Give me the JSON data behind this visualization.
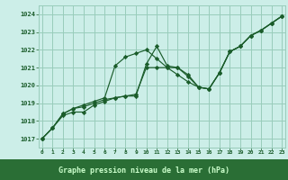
{
  "background_color": "#cceee8",
  "grid_color": "#99ccbb",
  "line_color": "#1a5c2a",
  "marker_color": "#1a5c2a",
  "xlabel": "Graphe pression niveau de la mer (hPa)",
  "xlabel_color": "#1a5c2a",
  "xlabel_bg": "#2d7a3a",
  "xlim": [
    -0.3,
    23.3
  ],
  "ylim": [
    1016.5,
    1024.5
  ],
  "yticks": [
    1017,
    1018,
    1019,
    1020,
    1021,
    1022,
    1023,
    1024
  ],
  "xticks": [
    0,
    1,
    2,
    3,
    4,
    5,
    6,
    7,
    8,
    9,
    10,
    11,
    12,
    13,
    14,
    15,
    16,
    17,
    18,
    19,
    20,
    21,
    22,
    23
  ],
  "series": [
    [
      1017.0,
      1017.6,
      1018.4,
      1018.7,
      1018.8,
      1019.0,
      1019.2,
      1019.3,
      1019.4,
      1019.4,
      1021.2,
      1022.2,
      1021.1,
      1021.0,
      1020.6,
      1019.9,
      1019.8,
      1020.7,
      1021.9,
      1022.2,
      1022.8,
      1023.1,
      1023.5,
      1023.9
    ],
    [
      1017.0,
      1017.6,
      1018.4,
      1018.7,
      1018.9,
      1019.1,
      1019.3,
      1021.1,
      1021.6,
      1021.8,
      1022.0,
      1021.5,
      1021.0,
      1020.6,
      1020.2,
      1019.9,
      1019.8,
      1020.7,
      1021.9,
      1022.2,
      1022.8,
      1023.1,
      1023.5,
      1023.9
    ],
    [
      1017.0,
      1017.6,
      1018.3,
      1018.5,
      1018.5,
      1018.9,
      1019.1,
      1019.3,
      1019.4,
      1019.5,
      1021.0,
      1021.0,
      1021.0,
      1021.0,
      1020.5,
      1019.9,
      1019.8,
      1020.7,
      1021.9,
      1022.2,
      1022.8,
      1023.1,
      1023.5,
      1023.9
    ]
  ]
}
